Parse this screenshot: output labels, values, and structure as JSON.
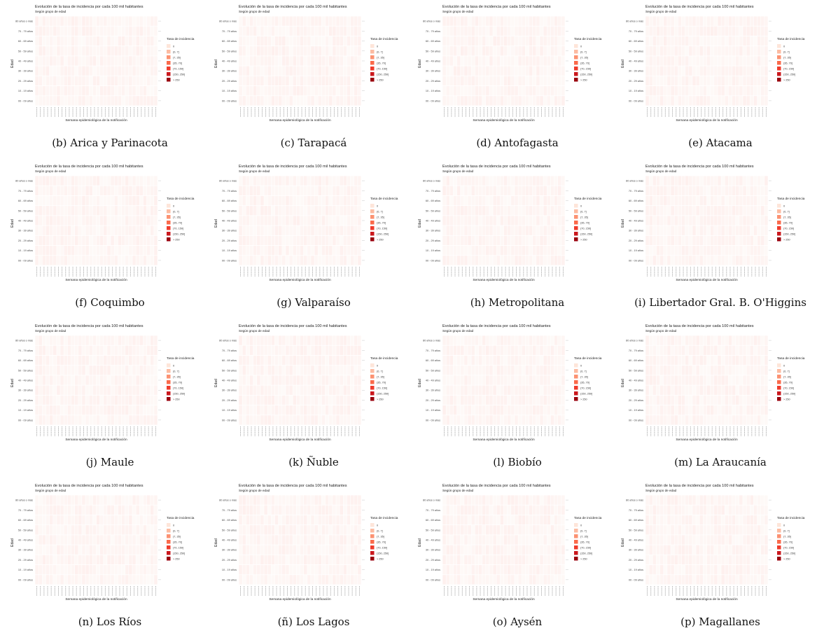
{
  "common": {
    "title": "Evolución de la tasa de incidencia por cada 100 mil habitantes",
    "subtitle": "Según grupo de edad",
    "xlabel": "Semana epidemiológica de la notificación",
    "ylabel": "Edad",
    "legend_title": "Tasa de incidencia",
    "legend_items": [
      "0",
      "(0, 7]",
      "(7, 35]",
      "(35, 70]",
      "(70, 150]",
      "(150, 250]",
      "> 250"
    ],
    "legend_colors": [
      "#fee5d9",
      "#fcbba1",
      "#fc9272",
      "#fb6a4a",
      "#ef3b2c",
      "#cb181d",
      "#99000d"
    ],
    "age_groups": [
      "00 - 09 años",
      "10 - 19 años",
      "20 - 29 años",
      "30 - 39 años",
      "40 - 49 años",
      "50 - 59 años",
      "60 - 69 años",
      "70 - 79 años",
      "80 años o más"
    ]
  },
  "chart_data": [
    {
      "type": "heatmap",
      "caption": "(b) Arica y Parinacota"
    },
    {
      "type": "heatmap",
      "caption": "(c) Tarapacá"
    },
    {
      "type": "heatmap",
      "caption": "(d) Antofagasta"
    },
    {
      "type": "heatmap",
      "caption": "(e) Atacama"
    },
    {
      "type": "heatmap",
      "caption": "(f) Coquimbo"
    },
    {
      "type": "heatmap",
      "caption": "(g) Valparaíso"
    },
    {
      "type": "heatmap",
      "caption": "(h) Metropolitana"
    },
    {
      "type": "heatmap",
      "caption": "(i) Libertador Gral. B. O'Higgins"
    },
    {
      "type": "heatmap",
      "caption": "(j) Maule"
    },
    {
      "type": "heatmap",
      "caption": "(k) Ñuble"
    },
    {
      "type": "heatmap",
      "caption": "(l) Biobío"
    },
    {
      "type": "heatmap",
      "caption": "(m) La Araucanía"
    },
    {
      "type": "heatmap",
      "caption": "(n) Los Ríos"
    },
    {
      "type": "heatmap",
      "caption": "(ñ) Los Lagos"
    },
    {
      "type": "heatmap",
      "caption": "(o) Aysén"
    },
    {
      "type": "heatmap",
      "caption": "(p) Magallanes"
    }
  ]
}
